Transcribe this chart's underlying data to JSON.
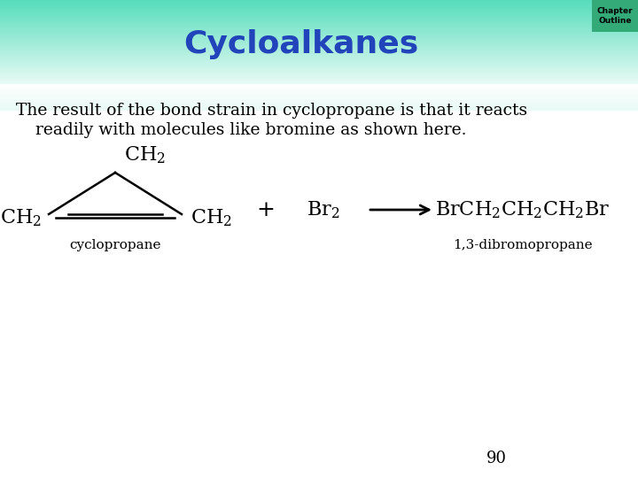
{
  "title": "Cycloalkanes",
  "title_color": "#2244bb",
  "title_fontsize": 26,
  "body_bg_color": "#ffffff",
  "chapter_outline_text": "Chapter\nOutline",
  "chapter_outline_bg": "#33aa77",
  "body_text_line1": "The result of the bond strain in cyclopropane is that it reacts",
  "body_text_line2": "readily with molecules like bromine as shown here.",
  "body_text_color": "#000000",
  "body_text_fontsize": 13.5,
  "page_number": "90",
  "cyclopropane_label": "cyclopropane",
  "product_label": "1,3-dibromopropane",
  "header_top_color": "#55ddbb",
  "header_mid_color": "#aaf0e0",
  "header_fade_color": "#ddfaf2"
}
